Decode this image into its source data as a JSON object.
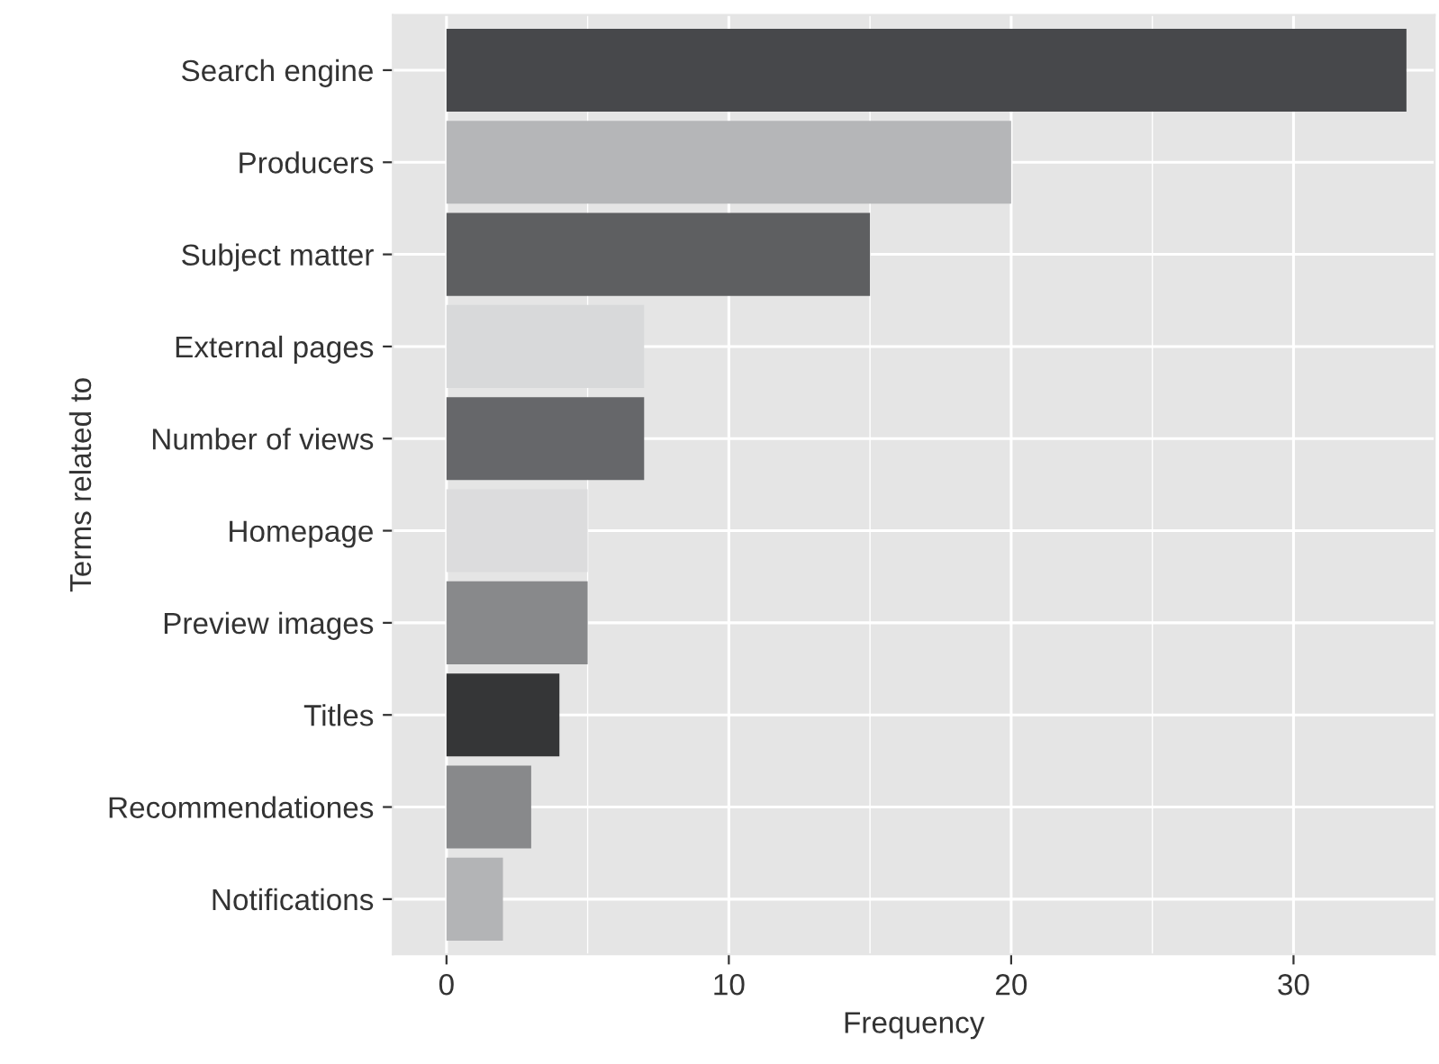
{
  "chart_data": {
    "type": "bar",
    "orientation": "horizontal",
    "xlabel": "Frequency",
    "ylabel": "Terms related to",
    "categories": [
      "Search engine",
      "Producers",
      "Subject matter",
      "External pages",
      "Number of views",
      "Homepage",
      "Preview images",
      "Titles",
      "Recommendationes",
      "Notifications"
    ],
    "values": [
      34,
      20,
      15,
      7,
      7,
      5,
      5,
      4,
      3,
      2
    ],
    "colors": [
      "#47484b",
      "#b5b6b8",
      "#5e5f61",
      "#d8d9da",
      "#66676a",
      "#dcdcdd",
      "#88898b",
      "#353637",
      "#88898b",
      "#b3b4b6"
    ],
    "xlim": [
      -1.9,
      35
    ],
    "xticks": [
      0,
      10,
      20,
      30
    ],
    "grid": true,
    "legend": false
  }
}
